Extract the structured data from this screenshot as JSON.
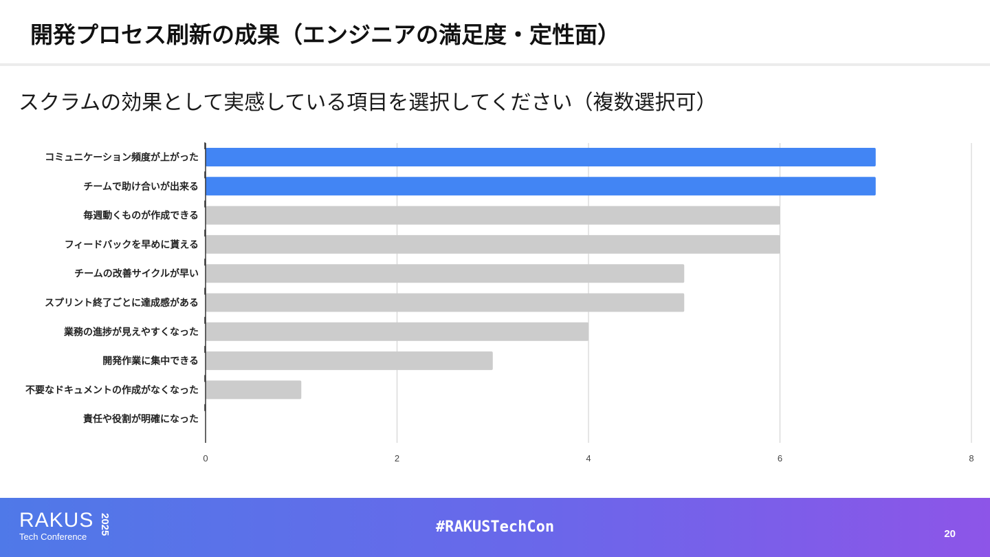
{
  "slide": {
    "title": "開発プロセス刷新の成果（エンジニアの満足度・定性面）",
    "question": "スクラムの効果として実感している項目を選択してください（複数選択可）",
    "page_number": "20"
  },
  "footer": {
    "logo_main": "RAKUS",
    "logo_year": "2025",
    "logo_sub": "Tech Conference",
    "hashtag": "#RAKUSTechCon"
  },
  "colors": {
    "highlight_bar": "#4285f4",
    "other_bar": "#cccccc",
    "gridline": "#cccccc",
    "axis": "#333333"
  },
  "chart_data": {
    "type": "bar",
    "orientation": "horizontal",
    "categories": [
      "コミュニケーション頻度が上がった",
      "チームで助け合いが出来る",
      "毎週動くものが作成できる",
      "フィードバックを早めに貰える",
      "チームの改善サイクルが早い",
      "スプリント終了ごとに達成感がある",
      "業務の進捗が見えやすくなった",
      "開発作業に集中できる",
      "不要なドキュメントの作成がなくなった",
      "責任や役割が明確になった"
    ],
    "values": [
      7,
      7,
      6,
      6,
      5,
      5,
      4,
      3,
      1,
      0
    ],
    "highlighted": [
      true,
      true,
      false,
      false,
      false,
      false,
      false,
      false,
      false,
      false
    ],
    "xlim": [
      0,
      8
    ],
    "xticks": [
      "0",
      "2",
      "4",
      "6",
      "8"
    ],
    "grid": true,
    "legend": "none"
  }
}
